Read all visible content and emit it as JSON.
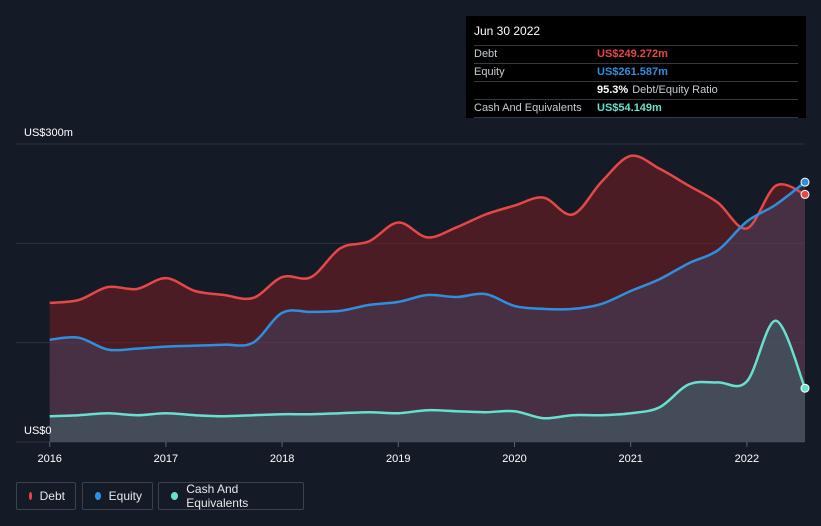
{
  "tooltip": {
    "date": "Jun 30 2022",
    "debt_label": "Debt",
    "debt_value": "US$249.272m",
    "equity_label": "Equity",
    "equity_value": "US$261.587m",
    "ratio_value": "95.3%",
    "ratio_label": "Debt/Equity Ratio",
    "cash_label": "Cash And Equivalents",
    "cash_value": "US$54.149m"
  },
  "legend": {
    "debt": "Debt",
    "equity": "Equity",
    "cash": "Cash And Equivalents"
  },
  "colors": {
    "debt": "#e64848",
    "equity": "#2f8fdd",
    "cash": "#67e0cf",
    "background": "#151b26"
  },
  "chart_data": {
    "type": "area",
    "ylim": [
      0,
      300
    ],
    "y_tick_labels": [
      {
        "value": 300,
        "label": "US$300m"
      },
      {
        "value": 0,
        "label": "US$0"
      }
    ],
    "x_ticks": [
      {
        "x": 2016.0,
        "label": "2016"
      },
      {
        "x": 2017.0,
        "label": "2017"
      },
      {
        "x": 2018.0,
        "label": "2018"
      },
      {
        "x": 2019.0,
        "label": "2019"
      },
      {
        "x": 2020.0,
        "label": "2020"
      },
      {
        "x": 2021.0,
        "label": "2021"
      },
      {
        "x": 2022.0,
        "label": "2022"
      }
    ],
    "xlim": [
      2015.71,
      2022.5
    ],
    "grid": true,
    "series": [
      {
        "name": "Debt",
        "key": "debt",
        "points": [
          [
            2016.0,
            140
          ],
          [
            2016.25,
            143
          ],
          [
            2016.5,
            156
          ],
          [
            2016.75,
            154
          ],
          [
            2017.0,
            165
          ],
          [
            2017.25,
            152
          ],
          [
            2017.5,
            148
          ],
          [
            2017.75,
            145
          ],
          [
            2018.0,
            166
          ],
          [
            2018.25,
            166
          ],
          [
            2018.5,
            195
          ],
          [
            2018.75,
            202
          ],
          [
            2019.0,
            221
          ],
          [
            2019.25,
            206
          ],
          [
            2019.5,
            216
          ],
          [
            2019.75,
            229
          ],
          [
            2020.0,
            238
          ],
          [
            2020.25,
            246
          ],
          [
            2020.5,
            229
          ],
          [
            2020.75,
            262
          ],
          [
            2021.0,
            288
          ],
          [
            2021.25,
            275
          ],
          [
            2021.5,
            258
          ],
          [
            2021.75,
            241
          ],
          [
            2022.0,
            215
          ],
          [
            2022.25,
            258
          ],
          [
            2022.5,
            249.272
          ]
        ]
      },
      {
        "name": "Equity",
        "key": "equity",
        "points": [
          [
            2016.0,
            103
          ],
          [
            2016.25,
            105
          ],
          [
            2016.5,
            93
          ],
          [
            2016.75,
            94
          ],
          [
            2017.0,
            96
          ],
          [
            2017.25,
            97
          ],
          [
            2017.5,
            98
          ],
          [
            2017.75,
            100
          ],
          [
            2018.0,
            130
          ],
          [
            2018.25,
            131
          ],
          [
            2018.5,
            132
          ],
          [
            2018.75,
            138
          ],
          [
            2019.0,
            141
          ],
          [
            2019.25,
            148
          ],
          [
            2019.5,
            146
          ],
          [
            2019.75,
            149
          ],
          [
            2020.0,
            137
          ],
          [
            2020.25,
            134
          ],
          [
            2020.5,
            134
          ],
          [
            2020.75,
            139
          ],
          [
            2021.0,
            152
          ],
          [
            2021.25,
            164
          ],
          [
            2021.5,
            180
          ],
          [
            2021.75,
            193
          ],
          [
            2022.0,
            222
          ],
          [
            2022.25,
            239
          ],
          [
            2022.5,
            261.587
          ]
        ]
      },
      {
        "name": "Cash And Equivalents",
        "key": "cash",
        "points": [
          [
            2016.0,
            26
          ],
          [
            2016.25,
            27
          ],
          [
            2016.5,
            29
          ],
          [
            2016.75,
            27
          ],
          [
            2017.0,
            29
          ],
          [
            2017.25,
            27
          ],
          [
            2017.5,
            26
          ],
          [
            2017.75,
            27
          ],
          [
            2018.0,
            28
          ],
          [
            2018.25,
            28
          ],
          [
            2018.5,
            29
          ],
          [
            2018.75,
            30
          ],
          [
            2019.0,
            29
          ],
          [
            2019.25,
            32
          ],
          [
            2019.5,
            31
          ],
          [
            2019.75,
            30
          ],
          [
            2020.0,
            31
          ],
          [
            2020.25,
            24
          ],
          [
            2020.5,
            27
          ],
          [
            2020.75,
            27
          ],
          [
            2021.0,
            29
          ],
          [
            2021.25,
            35
          ],
          [
            2021.5,
            58
          ],
          [
            2021.75,
            60
          ],
          [
            2022.0,
            61
          ],
          [
            2022.25,
            122
          ],
          [
            2022.5,
            54.149
          ]
        ]
      }
    ]
  }
}
